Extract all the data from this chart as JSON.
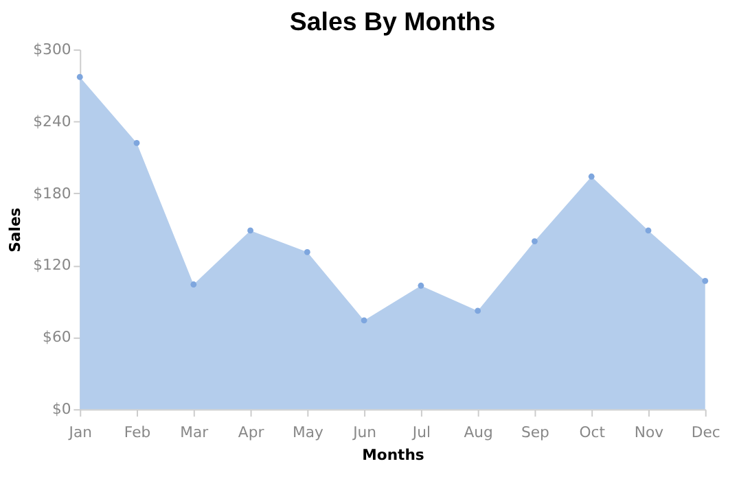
{
  "chart_data": {
    "type": "area",
    "title": "Sales By Months",
    "xlabel": "Months",
    "ylabel": "Sales",
    "categories": [
      "Jan",
      "Feb",
      "Mar",
      "Apr",
      "May",
      "Jun",
      "Jul",
      "Aug",
      "Sep",
      "Oct",
      "Nov",
      "Dec"
    ],
    "series": [
      {
        "color": "#b4cdec",
        "values": [
          277,
          222,
          104,
          149,
          131,
          74,
          103,
          82,
          140,
          194,
          149,
          107
        ]
      }
    ],
    "ylim": [
      0,
      300
    ],
    "yticks": [
      {
        "value": 0,
        "label": "$0"
      },
      {
        "value": 60,
        "label": "$60"
      },
      {
        "value": 120,
        "label": "$120"
      },
      {
        "value": 180,
        "label": "$180"
      },
      {
        "value": 240,
        "label": "$240"
      },
      {
        "value": 300,
        "label": "$300"
      }
    ],
    "grid": false,
    "marker": "circle"
  }
}
